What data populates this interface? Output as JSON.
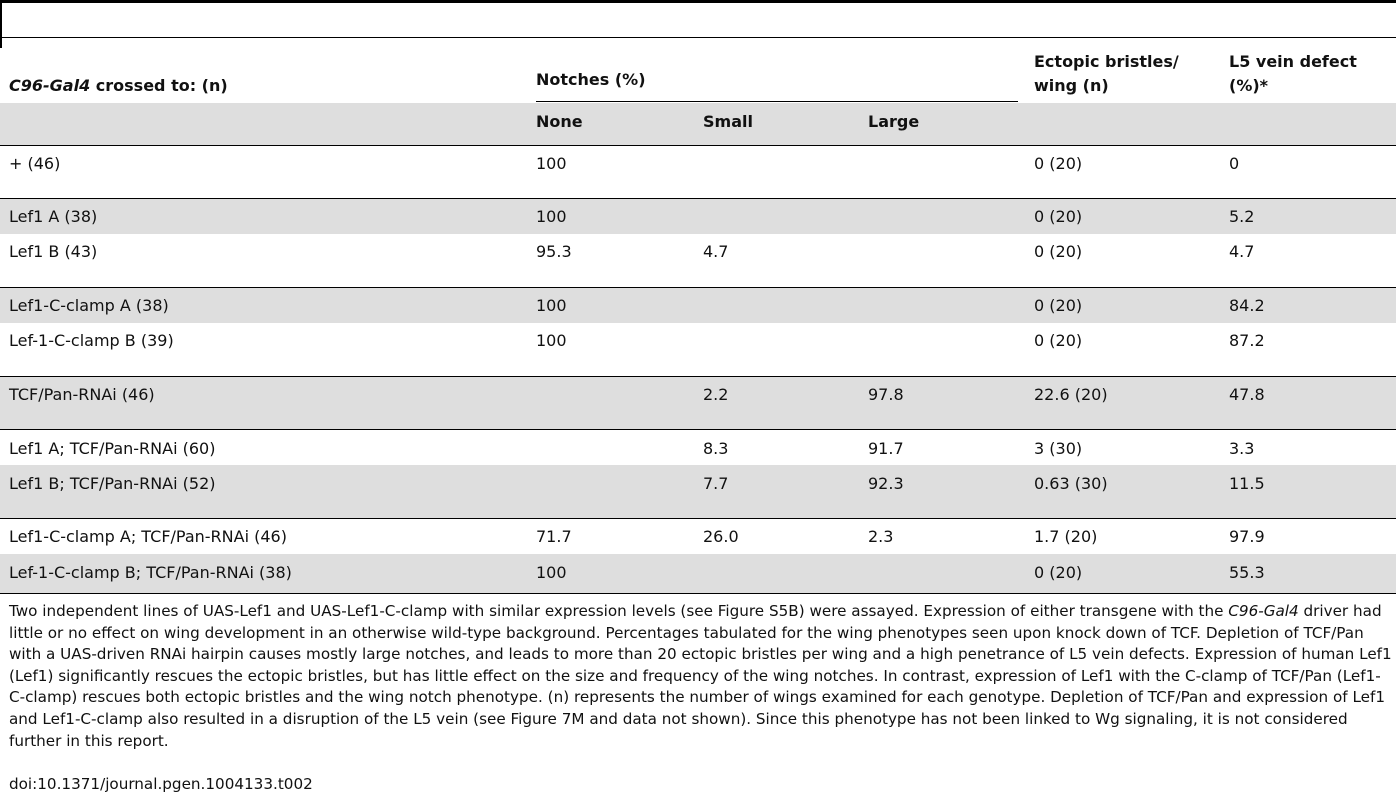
{
  "table": {
    "header": {
      "col_cross": "crossed to: (n)",
      "col_cross_italic": "C96-Gal4",
      "col_notches": "Notches (%)",
      "col_ectopic_line1": "Ectopic bristles/",
      "col_ectopic_line2": "wing (n)",
      "col_l5_line1": "L5 vein defect",
      "col_l5_line2": "(%)*",
      "sub_none": "None",
      "sub_small": "Small",
      "sub_large": "Large"
    },
    "rows": [
      {
        "genotype": "+ (46)",
        "none": "100",
        "small": "",
        "large": "",
        "ectopic": "0 (20)",
        "l5": "0"
      },
      {
        "genotype": "Lef1 A (38)",
        "none": "100",
        "small": "",
        "large": "",
        "ectopic": "0 (20)",
        "l5": "5.2"
      },
      {
        "genotype": "Lef1 B (43)",
        "none": "95.3",
        "small": "4.7",
        "large": "",
        "ectopic": "0 (20)",
        "l5": "4.7"
      },
      {
        "genotype": "Lef1-C-clamp A (38)",
        "none": "100",
        "small": "",
        "large": "",
        "ectopic": "0 (20)",
        "l5": "84.2"
      },
      {
        "genotype": "Lef-1-C-clamp B (39)",
        "none": "100",
        "small": "",
        "large": "",
        "ectopic": "0 (20)",
        "l5": "87.2"
      },
      {
        "genotype": "TCF/Pan-RNAi (46)",
        "none": "",
        "small": "2.2",
        "large": "97.8",
        "ectopic": "22.6 (20)",
        "l5": "47.8"
      },
      {
        "genotype": "Lef1 A; TCF/Pan-RNAi (60)",
        "none": "",
        "small": "8.3",
        "large": "91.7",
        "ectopic": "3 (30)",
        "l5": "3.3"
      },
      {
        "genotype": "Lef1 B; TCF/Pan-RNAi (52)",
        "none": "",
        "small": "7.7",
        "large": "92.3",
        "ectopic": "0.63 (30)",
        "l5": "11.5"
      },
      {
        "genotype": "Lef1-C-clamp A; TCF/Pan-RNAi (46)",
        "none": "71.7",
        "small": "26.0",
        "large": "2.3",
        "ectopic": "1.7 (20)",
        "l5": "97.9"
      },
      {
        "genotype": "Lef-1-C-clamp B; TCF/Pan-RNAi (38)",
        "none": "100",
        "small": "",
        "large": "",
        "ectopic": "0 (20)",
        "l5": "55.3"
      }
    ]
  },
  "footnote": {
    "part1": "Two independent lines of UAS-Lef1 and UAS-Lef1-C-clamp with similar expression levels (see Figure S5B) were assayed. Expression of either transgene with the ",
    "italic": "C96-Gal4",
    "part2": " driver had little or no effect on wing development in an otherwise wild-type background. Percentages tabulated for the wing phenotypes seen upon knock down of TCF. Depletion of TCF/Pan with a UAS-driven RNAi hairpin causes mostly large notches, and leads to more than 20 ectopic bristles per wing and a high penetrance of L5 vein defects. Expression of human Lef1 (Lef1) significantly rescues the ectopic bristles, but has little effect on the size and frequency of the wing notches. In contrast, expression of Lef1 with the C-clamp of TCF/Pan (Lef1-C-clamp) rescues both ectopic bristles and the wing notch phenotype. (n) represents the number of wings examined for each genotype. Depletion of TCF/Pan and expression of Lef1 and Lef1-C-clamp also resulted in a disruption of the L5 vein (see Figure 7M and data not shown). Since this phenotype has not been linked to Wg signaling, it is not considered further in this report."
  },
  "doi": "doi:10.1371/journal.pgen.1004133.t002"
}
